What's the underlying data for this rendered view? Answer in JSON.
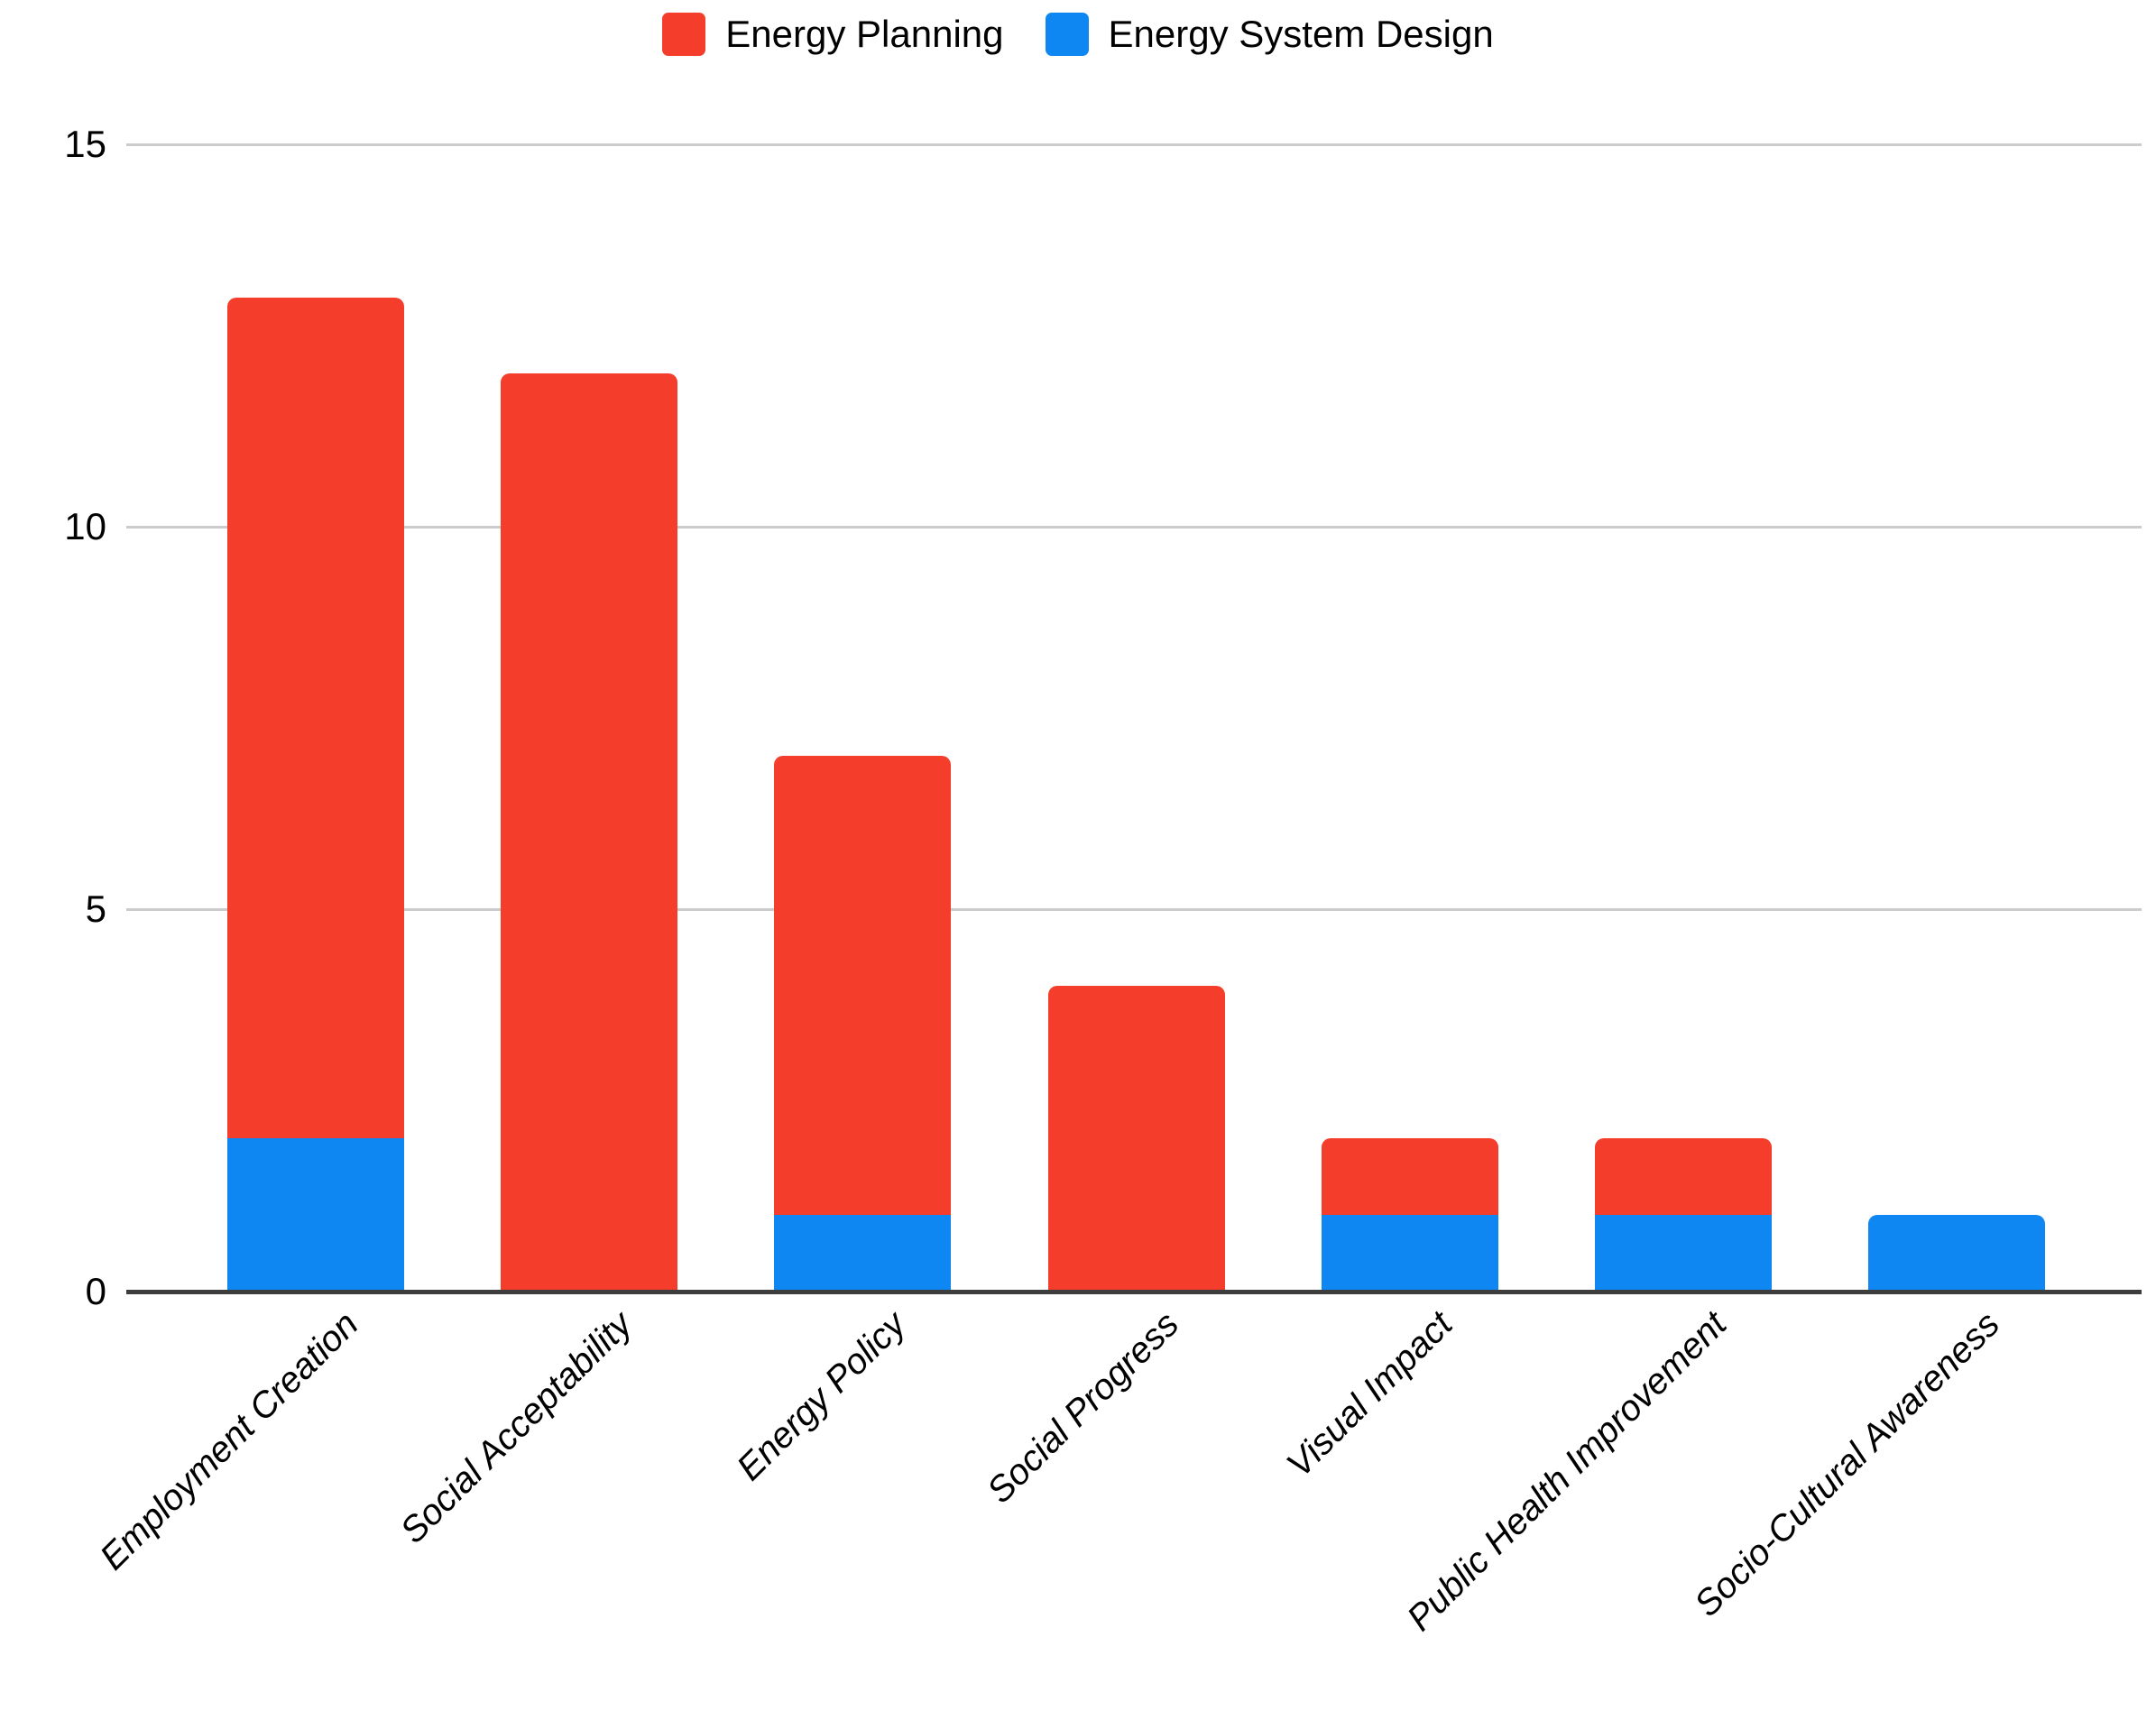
{
  "chart_data": {
    "type": "bar",
    "stacked": true,
    "title": "",
    "xlabel": "",
    "ylabel": "",
    "categories": [
      "Employment Creation",
      "Social Acceptability",
      "Energy Policy",
      "Social Progress",
      "Visual Impact",
      "Public Health Improvement",
      "Socio-Cultural Awareness"
    ],
    "series": [
      {
        "name": "Energy Planning",
        "color": "#f43d2a",
        "values": [
          11,
          12,
          6,
          4,
          1,
          1,
          0
        ]
      },
      {
        "name": "Energy System Design",
        "color": "#0e87f2",
        "values": [
          2,
          0,
          1,
          0,
          1,
          1,
          1
        ]
      }
    ],
    "stack_order_bottom_to_top": [
      "Energy System Design",
      "Energy Planning"
    ],
    "stack_totals": [
      13,
      12,
      7,
      4,
      2,
      2,
      1
    ],
    "ylim": [
      0,
      15
    ],
    "yticks": [
      0,
      5,
      10,
      15
    ],
    "grid": true,
    "legend_position": "top",
    "colors": {
      "gridline": "#cccccc",
      "axis_baseline": "#3d3d3d",
      "tick_label": "#000000",
      "legend_text": "#000000",
      "background": "#ffffff"
    }
  }
}
